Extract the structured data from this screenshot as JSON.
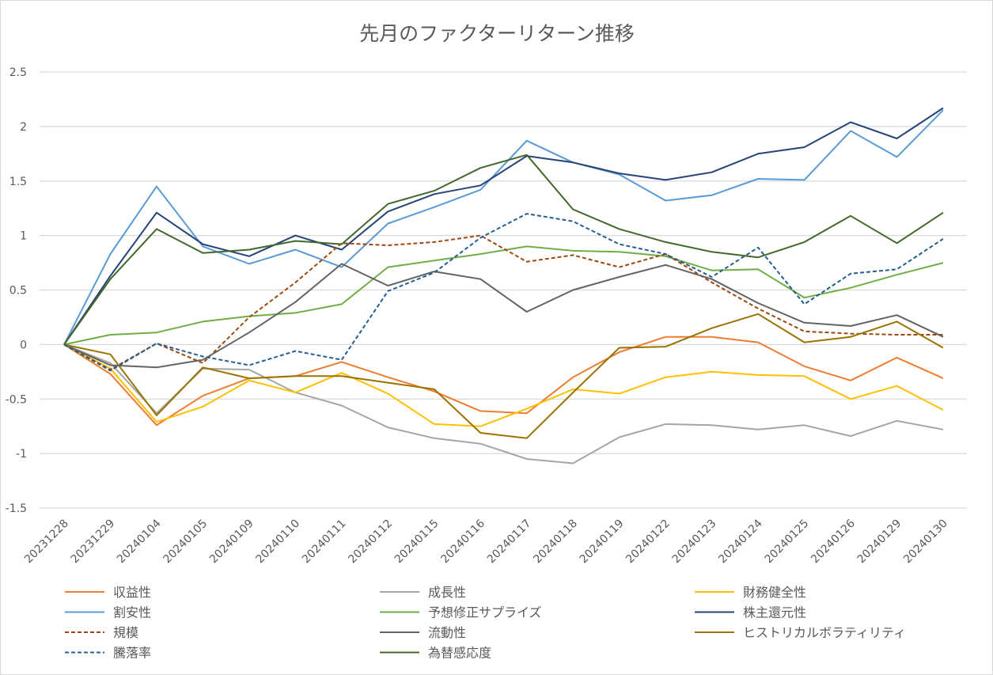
{
  "chart_data": {
    "type": "line",
    "title": "先月のファクターリターン推移",
    "xlabel": "",
    "ylabel": "",
    "ylim": [
      -1.5,
      2.5
    ],
    "yticks": [
      "2.5",
      "2",
      "1.5",
      "1",
      "0.5",
      "0",
      "-0.5",
      "-1",
      "-1.5"
    ],
    "ytick_values": [
      2.5,
      2,
      1.5,
      1,
      0.5,
      0,
      -0.5,
      -1,
      -1.5
    ],
    "grid": true,
    "legend_position": "bottom",
    "categories": [
      "20231228",
      "20231229",
      "20240104",
      "20240105",
      "20240109",
      "20240110",
      "20240111",
      "20240112",
      "20240115",
      "20240116",
      "20240117",
      "20240118",
      "20240119",
      "20240122",
      "20240123",
      "20240124",
      "20240125",
      "20240126",
      "20240129",
      "20240130"
    ],
    "series": [
      {
        "name": "収益性",
        "color": "#ED7D31",
        "dash": false,
        "values": [
          0,
          -0.27,
          -0.74,
          -0.47,
          -0.31,
          -0.29,
          -0.16,
          -0.3,
          -0.43,
          -0.61,
          -0.63,
          -0.3,
          -0.07,
          0.07,
          0.07,
          0.02,
          -0.2,
          -0.33,
          -0.12,
          -0.31
        ]
      },
      {
        "name": "成長性",
        "color": "#A5A5A5",
        "dash": false,
        "values": [
          0,
          -0.17,
          -0.63,
          -0.22,
          -0.23,
          -0.44,
          -0.56,
          -0.76,
          -0.86,
          -0.91,
          -1.05,
          -1.09,
          -0.85,
          -0.73,
          -0.74,
          -0.78,
          -0.74,
          -0.84,
          -0.7,
          -0.78
        ]
      },
      {
        "name": "財務健全性",
        "color": "#FFC000",
        "dash": false,
        "values": [
          0,
          -0.22,
          -0.71,
          -0.57,
          -0.33,
          -0.44,
          -0.26,
          -0.45,
          -0.73,
          -0.75,
          -0.59,
          -0.41,
          -0.45,
          -0.3,
          -0.25,
          -0.28,
          -0.29,
          -0.5,
          -0.38,
          -0.6
        ]
      },
      {
        "name": "割安性",
        "color": "#5B9BD5",
        "dash": false,
        "values": [
          0,
          0.83,
          1.45,
          0.9,
          0.74,
          0.87,
          0.71,
          1.11,
          1.26,
          1.42,
          1.87,
          1.67,
          1.56,
          1.32,
          1.37,
          1.52,
          1.51,
          1.96,
          1.72,
          2.15
        ]
      },
      {
        "name": "予想修正サプライズ",
        "color": "#70AD47",
        "dash": false,
        "values": [
          0,
          0.09,
          0.11,
          0.21,
          0.26,
          0.29,
          0.37,
          0.71,
          0.77,
          0.83,
          0.9,
          0.86,
          0.85,
          0.81,
          0.68,
          0.69,
          0.43,
          0.52,
          0.64,
          0.75
        ]
      },
      {
        "name": "株主還元性",
        "color": "#264478",
        "dash": false,
        "values": [
          0,
          0.63,
          1.21,
          0.92,
          0.81,
          1.0,
          0.87,
          1.22,
          1.38,
          1.46,
          1.73,
          1.67,
          1.57,
          1.51,
          1.58,
          1.75,
          1.81,
          2.04,
          1.89,
          2.17
        ]
      },
      {
        "name": "規模",
        "color": "#9E480E",
        "dash": true,
        "values": [
          0,
          -0.23,
          0.01,
          -0.17,
          0.25,
          0.57,
          0.93,
          0.91,
          0.94,
          1.0,
          0.76,
          0.82,
          0.71,
          0.83,
          0.57,
          0.33,
          0.12,
          0.1,
          0.09,
          0.09
        ]
      },
      {
        "name": "流動性",
        "color": "#636363",
        "dash": false,
        "values": [
          0,
          -0.19,
          -0.21,
          -0.14,
          0.11,
          0.39,
          0.74,
          0.54,
          0.67,
          0.6,
          0.3,
          0.5,
          0.62,
          0.73,
          0.6,
          0.38,
          0.2,
          0.17,
          0.27,
          0.07
        ]
      },
      {
        "name": "ヒストリカルボラティリティ",
        "color": "#997300",
        "dash": false,
        "values": [
          0,
          -0.09,
          -0.65,
          -0.21,
          -0.31,
          -0.29,
          -0.29,
          -0.35,
          -0.41,
          -0.81,
          -0.86,
          -0.44,
          -0.03,
          -0.02,
          0.15,
          0.28,
          0.02,
          0.07,
          0.21,
          -0.03
        ]
      },
      {
        "name": "騰落率",
        "color": "#255E91",
        "dash": true,
        "values": [
          0,
          -0.24,
          0.01,
          -0.11,
          -0.19,
          -0.06,
          -0.14,
          0.49,
          0.66,
          0.98,
          1.2,
          1.13,
          0.92,
          0.83,
          0.62,
          0.89,
          0.37,
          0.65,
          0.69,
          0.97
        ]
      },
      {
        "name": "為替感応度",
        "color": "#43682B",
        "dash": false,
        "values": [
          0,
          0.6,
          1.06,
          0.84,
          0.87,
          0.95,
          0.92,
          1.29,
          1.41,
          1.62,
          1.74,
          1.24,
          1.06,
          0.94,
          0.85,
          0.8,
          0.94,
          1.18,
          0.93,
          1.21
        ]
      }
    ]
  }
}
